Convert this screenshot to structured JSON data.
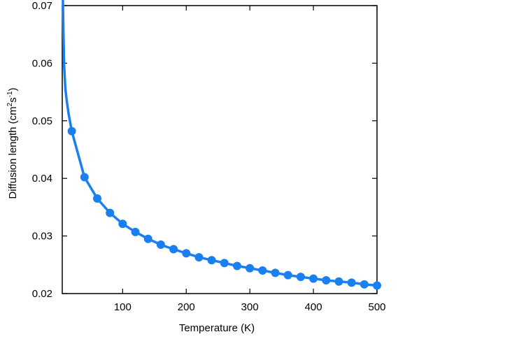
{
  "chart_data": {
    "type": "line",
    "title": "",
    "xlabel": "Temperature (K)",
    "ylabel": {
      "main": "Diffusion length (cm",
      "sup1": "2",
      "mid": "s",
      "sup2": "-1",
      "end": ")"
    },
    "xlim": [
      5,
      500
    ],
    "ylim": [
      0.02,
      0.07
    ],
    "xticks": [
      100,
      200,
      300,
      400,
      500
    ],
    "yticks": [
      0.02,
      0.03,
      0.04,
      0.05,
      0.06,
      0.07
    ],
    "xtick_labels": [
      "100",
      "200",
      "300",
      "400",
      "500"
    ],
    "ytick_labels": [
      "0.02",
      "0.03",
      "0.04",
      "0.05",
      "0.06",
      "0.07"
    ],
    "grid": false,
    "color": "#1a7ff0",
    "series": [
      {
        "x": [
          20,
          40,
          60,
          80,
          100,
          120,
          140,
          160,
          180,
          200,
          220,
          240,
          260,
          280,
          300,
          320,
          340,
          360,
          380,
          400,
          420,
          440,
          460,
          480,
          500
        ],
        "y": [
          0.0482,
          0.0402,
          0.0365,
          0.034,
          0.0321,
          0.0307,
          0.0295,
          0.0285,
          0.0277,
          0.027,
          0.0263,
          0.0258,
          0.0253,
          0.0248,
          0.0244,
          0.024,
          0.0236,
          0.0232,
          0.0229,
          0.0226,
          0.0223,
          0.0221,
          0.0219,
          0.0216,
          0.0214
        ]
      }
    ],
    "curve": {
      "x": [
        6,
        7,
        8,
        10,
        12,
        15,
        20
      ],
      "y": [
        0.071,
        0.0645,
        0.0595,
        0.0555,
        0.0535,
        0.0512,
        0.0482
      ]
    }
  }
}
